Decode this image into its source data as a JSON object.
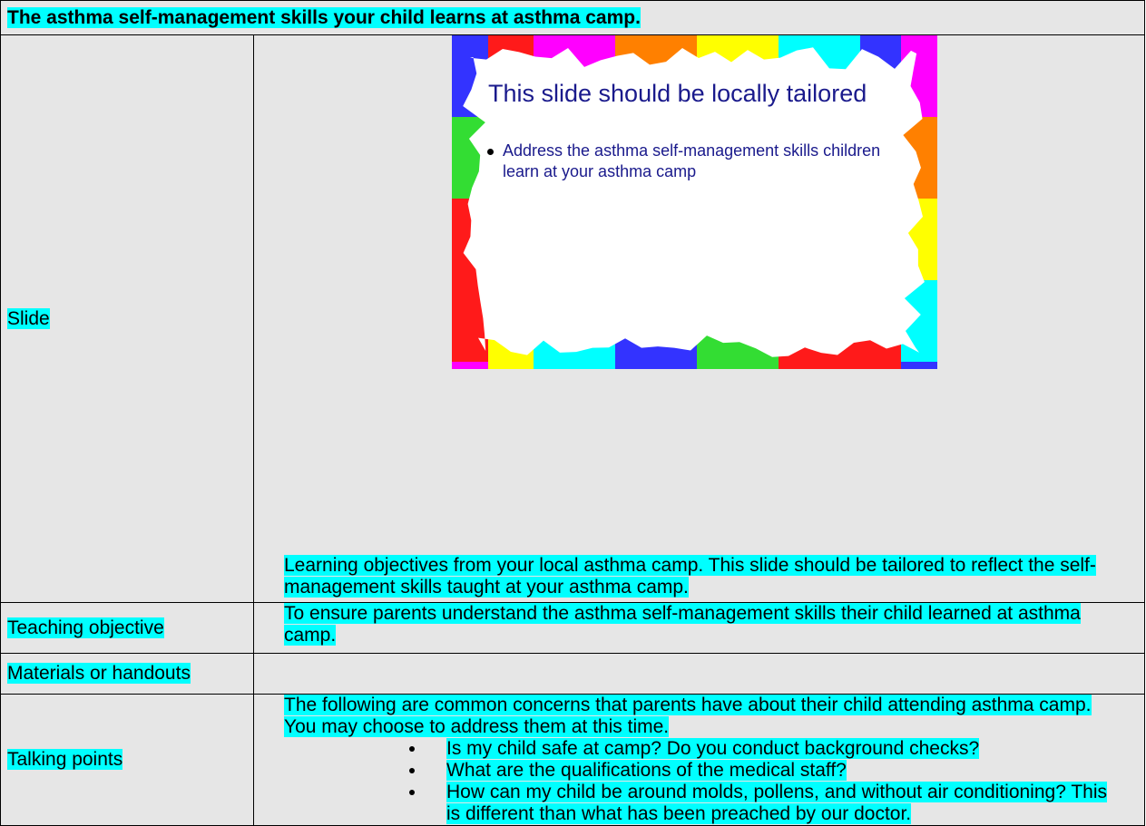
{
  "header": {
    "title": "The asthma self-management skills your child learns at asthma camp."
  },
  "rows": [
    {
      "label": "Slide",
      "slide": {
        "title": "This slide should be locally tailored",
        "bullets": [
          "Address the asthma self-management skills children learn at your asthma camp"
        ]
      },
      "caption": "Learning objectives from your local asthma camp.  This slide should be tailored to reflect the self-management skills taught at your asthma camp."
    },
    {
      "label": "Teaching objective",
      "text": "To ensure parents understand the asthma self-management skills their child learned at asthma camp."
    },
    {
      "label": "Materials or handouts",
      "text": ""
    },
    {
      "label": "Talking points",
      "intro": "The following are common concerns that parents have about their child attending asthma camp.  You may choose to address them at this time.",
      "bullets": [
        "Is my child safe at camp?  Do you conduct background checks?",
        "What are the qualifications of the medical staff?",
        "How can my child be around molds, pollens, and without air conditioning?  This is different than what has been preached by our doctor."
      ]
    }
  ]
}
